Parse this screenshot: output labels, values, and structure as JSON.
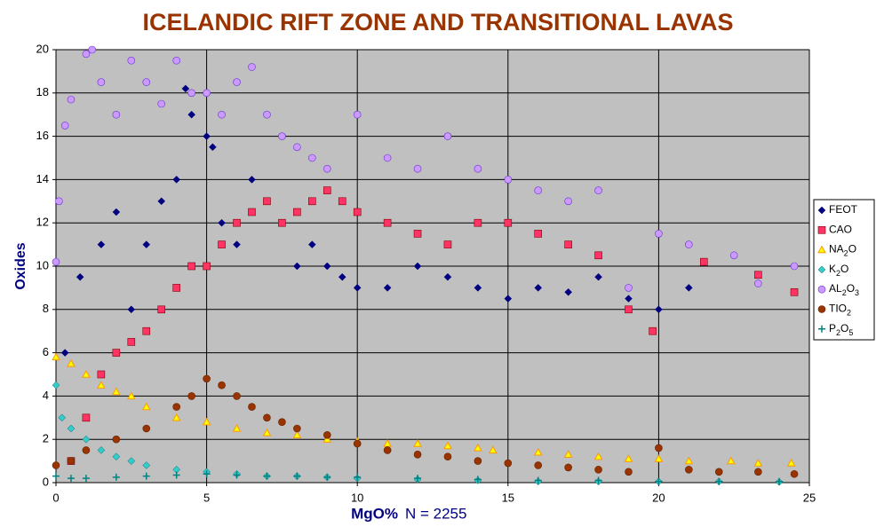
{
  "chart_data": {
    "type": "scatter",
    "title": "ICELANDIC RIFT ZONE AND TRANSITIONAL LAVAS",
    "x_label": "MgO%",
    "note": "N = 2255",
    "y_label": "Oxides",
    "xlim": [
      0,
      25
    ],
    "xticks": [
      0,
      5,
      10,
      15,
      20,
      25
    ],
    "ylim": [
      0,
      20
    ],
    "yticks": [
      0,
      2,
      4,
      6,
      8,
      10,
      12,
      14,
      16,
      18,
      20
    ],
    "grid": true,
    "background": "#c0c0c0",
    "legend": "right",
    "series": [
      {
        "name": "FEOT",
        "color": "#000080",
        "marker": "diamond",
        "x": [
          0.3,
          0.8,
          1.5,
          2,
          2.5,
          3,
          3.5,
          4,
          4.3,
          4.5,
          5,
          5.2,
          5.5,
          6,
          6.5,
          7,
          7.5,
          8,
          8.5,
          9,
          9.5,
          10,
          11,
          12,
          13,
          14,
          15,
          16,
          17,
          18,
          19,
          20,
          21,
          24.5
        ],
        "values": [
          6,
          9.5,
          11,
          12.5,
          8,
          11,
          13,
          14,
          18.2,
          17,
          16,
          15.5,
          12,
          11,
          14,
          13,
          12,
          10,
          11,
          10,
          9.5,
          9,
          9,
          10,
          9.5,
          9,
          8.5,
          9,
          8.8,
          9.5,
          8.5,
          8,
          9,
          8.8
        ]
      },
      {
        "name": "CAO",
        "color": "#ff3366",
        "marker": "square",
        "x": [
          0.5,
          1,
          1.5,
          2,
          2.5,
          3,
          3.5,
          4,
          4.5,
          5,
          5.5,
          6,
          6.5,
          7,
          7.5,
          8,
          8.5,
          9,
          9.5,
          10,
          11,
          12,
          13,
          14,
          15,
          16,
          17,
          18,
          19,
          19.8,
          21.5,
          23.3,
          24.5
        ],
        "values": [
          1,
          3,
          5,
          6,
          6.5,
          7,
          8,
          9,
          10,
          10,
          11,
          12,
          12.5,
          13,
          12,
          12.5,
          13,
          13.5,
          13,
          12.5,
          12,
          11.5,
          11,
          12,
          12,
          11.5,
          11,
          10.5,
          8,
          7,
          10.2,
          9.6,
          8.8
        ]
      },
      {
        "name": "NA2O",
        "color": "#ffff00",
        "marker": "triangle",
        "x": [
          0,
          0.5,
          1,
          1.5,
          2,
          2.5,
          3,
          4,
          5,
          6,
          7,
          8,
          9,
          10,
          11,
          12,
          13,
          14,
          14.5,
          16,
          17,
          18,
          19,
          20,
          21,
          22.4,
          23.3,
          24.4
        ],
        "values": [
          5.8,
          5.5,
          5,
          4.5,
          4.2,
          4,
          3.5,
          3,
          2.8,
          2.5,
          2.3,
          2.2,
          2,
          1.9,
          1.8,
          1.8,
          1.7,
          1.6,
          1.5,
          1.4,
          1.3,
          1.2,
          1.1,
          1.1,
          1,
          1,
          0.9,
          0.9
        ]
      },
      {
        "name": "K2O",
        "color": "#33cccc",
        "marker": "diamond",
        "x": [
          0,
          0.2,
          0.5,
          1,
          1.5,
          2,
          2.5,
          3,
          4,
          5,
          6,
          7,
          8,
          9,
          10,
          12,
          14,
          16,
          18,
          20,
          22,
          24
        ],
        "values": [
          4.5,
          3,
          2.5,
          2,
          1.5,
          1.2,
          1,
          0.8,
          0.6,
          0.5,
          0.4,
          0.3,
          0.3,
          0.25,
          0.2,
          0.15,
          0.1,
          0.05,
          0.05,
          0.05,
          0.05,
          0.03
        ]
      },
      {
        "name": "AL2O3",
        "color": "#cc99ff",
        "marker": "circle",
        "x": [
          0,
          0.1,
          0.3,
          0.5,
          1,
          1.2,
          1.5,
          2,
          2.5,
          3,
          3.5,
          4,
          4.5,
          5,
          5.5,
          6,
          6.5,
          7,
          7.5,
          8,
          8.5,
          9,
          10,
          11,
          12,
          13,
          14,
          15,
          16,
          17,
          18,
          19,
          20,
          21,
          22.5,
          23.3,
          24.5
        ],
        "values": [
          10.2,
          13,
          16.5,
          17.7,
          19.8,
          20,
          18.5,
          17,
          19.5,
          18.5,
          17.5,
          19.5,
          18,
          18,
          17,
          18.5,
          19.2,
          17,
          16,
          15.5,
          15,
          14.5,
          17,
          15,
          14.5,
          16,
          14.5,
          14,
          13.5,
          13,
          13.5,
          9,
          11.5,
          11,
          10.5,
          9.2,
          10
        ]
      },
      {
        "name": "TIO2",
        "color": "#993300",
        "marker": "circle",
        "x": [
          0,
          0.5,
          1,
          2,
          3,
          4,
          4.5,
          5,
          5.5,
          6,
          6.5,
          7,
          7.5,
          8,
          9,
          10,
          11,
          12,
          13,
          14,
          15,
          16,
          17,
          18,
          19,
          20,
          21,
          22,
          23.3,
          24.5
        ],
        "values": [
          0.8,
          1,
          1.5,
          2,
          2.5,
          3.5,
          4,
          4.8,
          4.5,
          4,
          3.5,
          3,
          2.8,
          2.5,
          2.2,
          1.8,
          1.5,
          1.3,
          1.2,
          1,
          0.9,
          0.8,
          0.7,
          0.6,
          0.5,
          1.6,
          0.6,
          0.5,
          0.5,
          0.4
        ]
      },
      {
        "name": "P2O5",
        "color": "#008080",
        "marker": "plus",
        "x": [
          0,
          0.5,
          1,
          2,
          3,
          4,
          5,
          6,
          7,
          8,
          9,
          10,
          12,
          14,
          16,
          18,
          20,
          22,
          24
        ],
        "values": [
          0.3,
          0.2,
          0.2,
          0.25,
          0.3,
          0.35,
          0.4,
          0.35,
          0.3,
          0.3,
          0.25,
          0.25,
          0.2,
          0.15,
          0.1,
          0.1,
          0.05,
          0.05,
          0.05
        ]
      }
    ]
  }
}
